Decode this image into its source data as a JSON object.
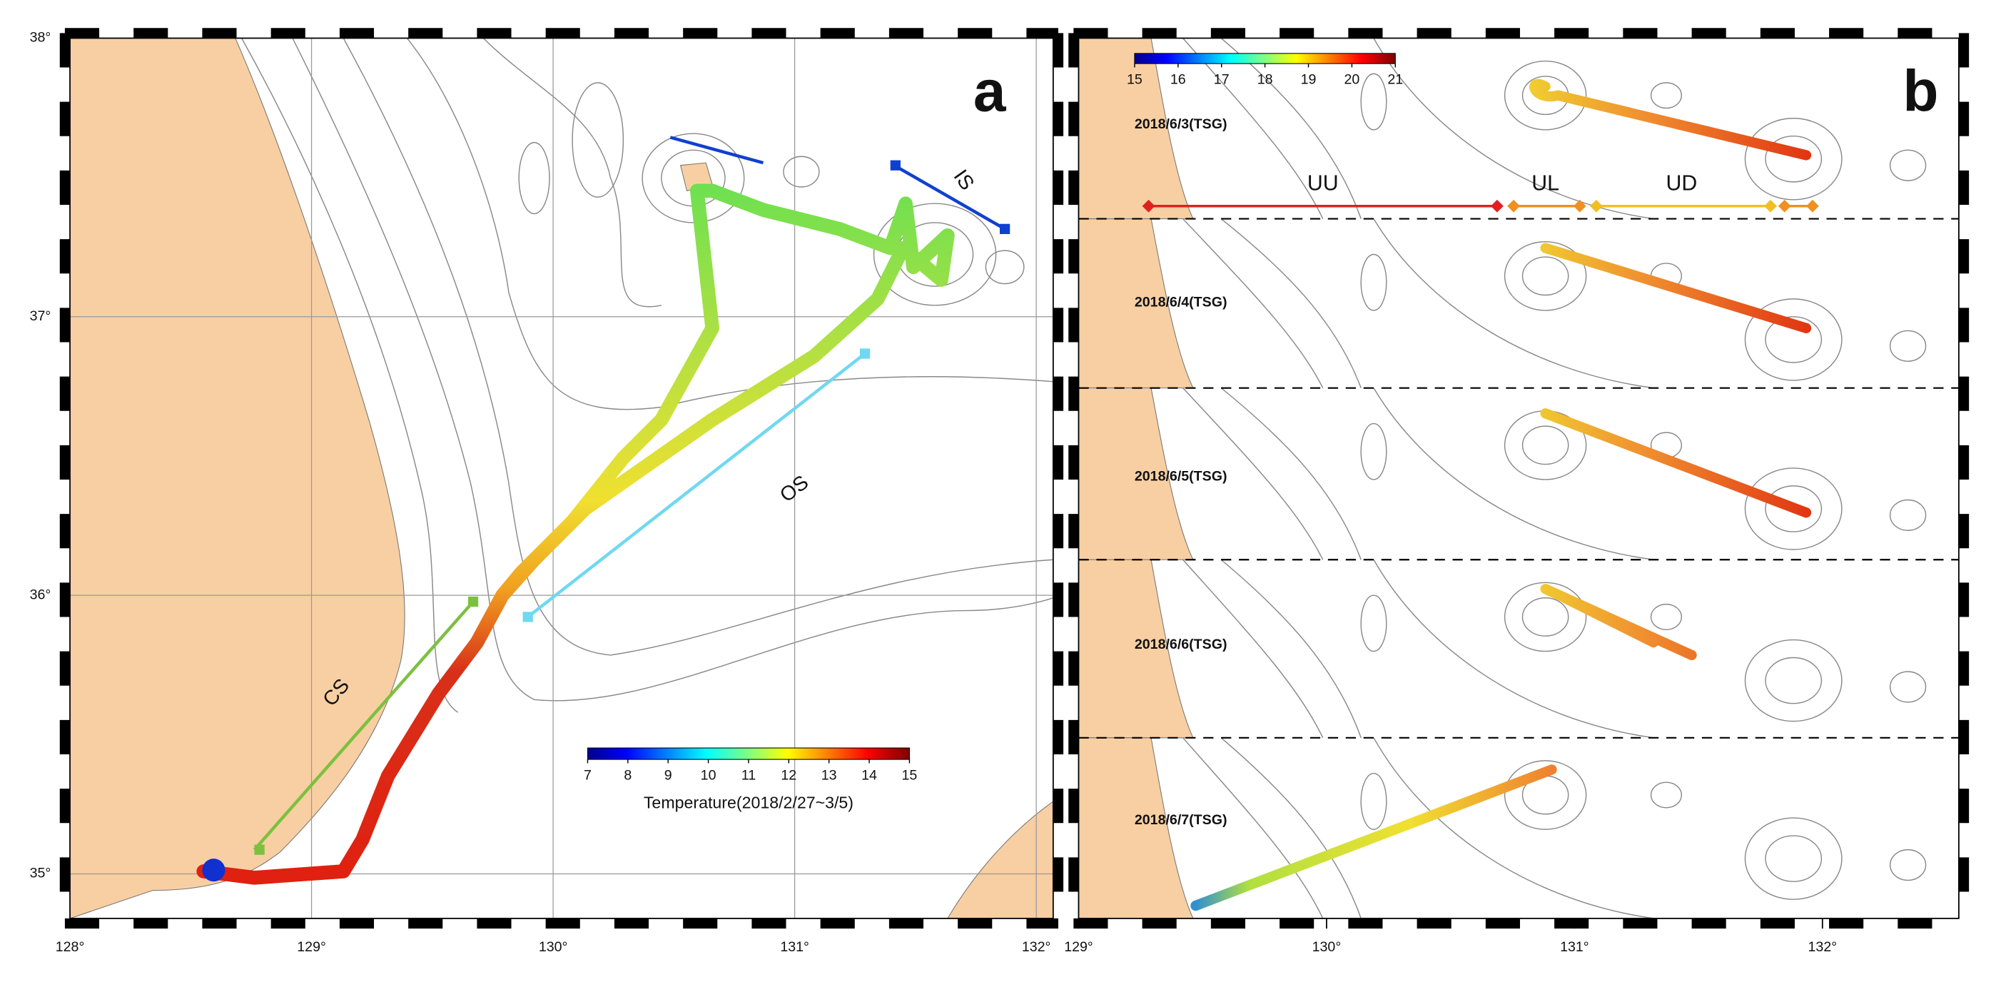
{
  "panels": [
    {
      "label": "a",
      "xlim": [
        128,
        132.07
      ],
      "ylim": [
        34.84,
        38
      ],
      "xticks": [
        {
          "value": 128,
          "label": "128°"
        },
        {
          "value": 129,
          "label": "129°"
        },
        {
          "value": 130,
          "label": "130°"
        },
        {
          "value": 131,
          "label": "131°"
        },
        {
          "value": 132,
          "label": "132°"
        }
      ],
      "yticks": [
        {
          "value": 35,
          "label": "35°"
        },
        {
          "value": 36,
          "label": "36°"
        },
        {
          "value": 37,
          "label": "37°"
        },
        {
          "value": 38,
          "label": "38°"
        }
      ],
      "sections": [
        "CS",
        "OS",
        "IS"
      ],
      "colorbar": {
        "lim": [
          7,
          15
        ],
        "ticks": [
          7,
          8,
          9,
          10,
          11,
          12,
          13,
          14,
          15
        ],
        "title": "Temperature(2018/2/27~3/5)"
      }
    },
    {
      "label": "b",
      "xlim": [
        129,
        132.55
      ],
      "xticks": [
        {
          "value": 129,
          "label": "129°"
        },
        {
          "value": 130,
          "label": "130°"
        },
        {
          "value": 131,
          "label": "131°"
        },
        {
          "value": 132,
          "label": "132°"
        }
      ],
      "sections": [
        "UU",
        "UL",
        "UD"
      ],
      "dates": [
        "2018/6/3(TSG)",
        "2018/6/4(TSG)",
        "2018/6/5(TSG)",
        "2018/6/6(TSG)",
        "2018/6/7(TSG)"
      ],
      "colorbar": {
        "lim": [
          15,
          21
        ],
        "ticks": [
          15,
          16,
          17,
          18,
          19,
          20,
          21
        ]
      }
    }
  ]
}
